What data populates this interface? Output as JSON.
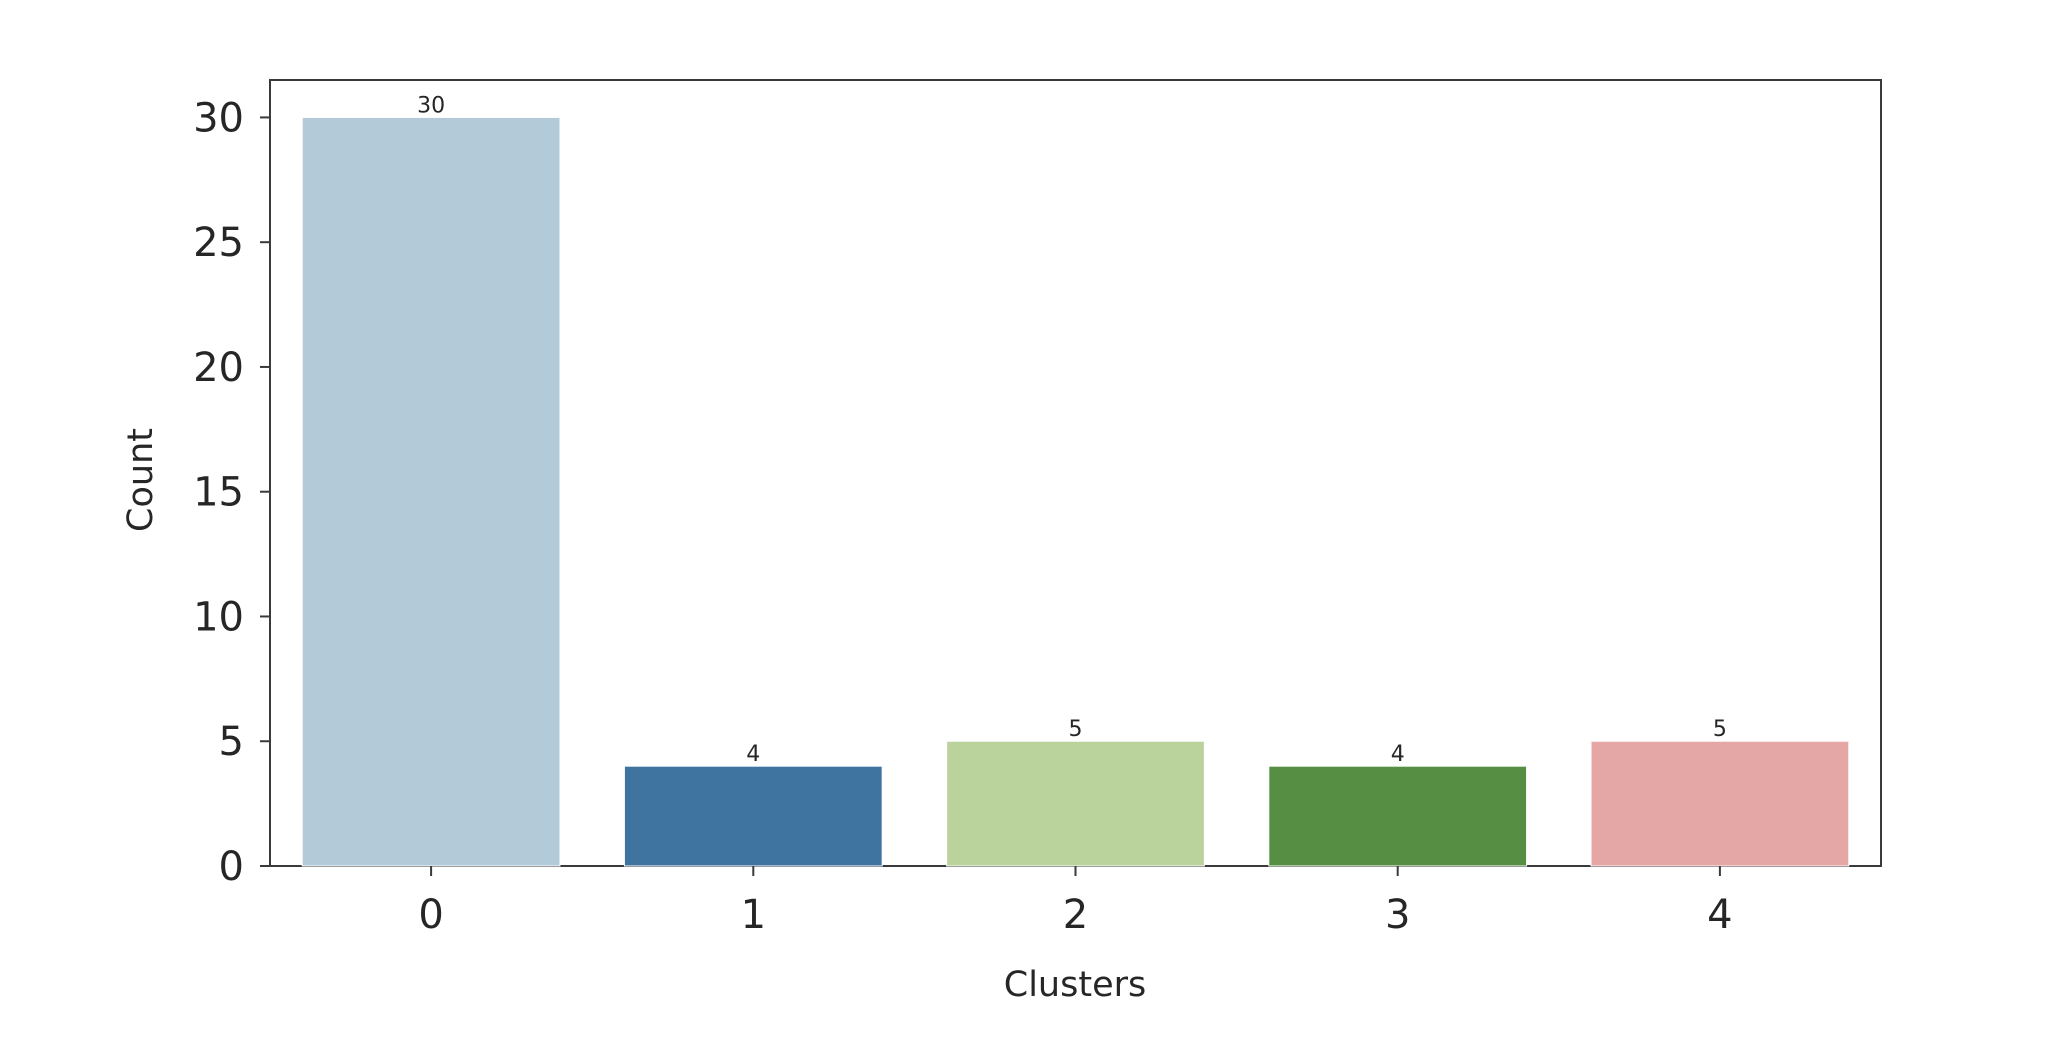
{
  "chart_data": {
    "type": "bar",
    "categories": [
      "0",
      "1",
      "2",
      "3",
      "4"
    ],
    "values": [
      30,
      4,
      5,
      4,
      5
    ],
    "data_labels": [
      "30",
      "4",
      "5",
      "4",
      "5"
    ],
    "bar_colors": [
      "#b3cbd9",
      "#3f73a0",
      "#bad39c",
      "#568f44",
      "#e5a6a6"
    ],
    "title": "",
    "xlabel": "Clusters",
    "ylabel": "Count",
    "ylim": [
      0,
      31.5
    ],
    "y_ticks": [
      0,
      5,
      10,
      15,
      20,
      25,
      30
    ],
    "y_tick_labels": [
      "0",
      "5",
      "10",
      "15",
      "20",
      "25",
      "30"
    ],
    "grid": false,
    "legend": "none"
  }
}
